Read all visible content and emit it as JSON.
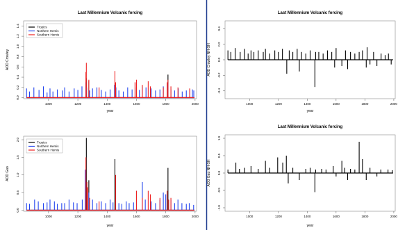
{
  "divider_color": "#1f3c8f",
  "chart_data": [
    {
      "type": "line",
      "title": "Last Millennium Volcanic forcing",
      "xlabel": "year",
      "ylabel": "AOD Crowley",
      "xlim": [
        830,
        2010
      ],
      "ylim": [
        -0.02,
        1.5
      ],
      "xticks": [
        1000,
        1200,
        1400,
        1600,
        1800,
        2000
      ],
      "yticks": [
        0.0,
        0.2,
        0.4,
        0.6,
        0.8,
        1.0,
        1.2,
        1.4
      ],
      "ytick_labels": [
        "0.0",
        "0.2",
        "0.4",
        "0.6",
        "0.8",
        "1.0",
        "1.2",
        "1.4"
      ],
      "legend": "top-left",
      "series": [
        {
          "name": "Tropics",
          "color": "#000000",
          "x": [
            1258,
            1275,
            1453,
            1600,
            1815
          ],
          "values": [
            0.38,
            0.33,
            0.28,
            0.2,
            0.45
          ]
        },
        {
          "name": "Northern Hemis",
          "color": "#2244ee",
          "x": [
            850,
            870,
            900,
            935,
            965,
            990,
            1010,
            1030,
            1060,
            1095,
            1110,
            1140,
            1175,
            1200,
            1228,
            1255,
            1260,
            1280,
            1300,
            1330,
            1360,
            1390,
            1420,
            1450,
            1460,
            1480,
            1510,
            1540,
            1570,
            1600,
            1620,
            1640,
            1665,
            1700,
            1730,
            1760,
            1783,
            1815,
            1835,
            1860,
            1885,
            1912,
            1940,
            1963,
            1982,
            1991
          ],
          "values": [
            0.18,
            0.12,
            0.2,
            0.15,
            0.22,
            0.1,
            0.18,
            0.12,
            0.16,
            0.14,
            0.2,
            0.12,
            0.18,
            0.15,
            0.22,
            0.3,
            0.2,
            0.14,
            0.18,
            0.2,
            0.15,
            0.12,
            0.16,
            0.25,
            0.2,
            0.14,
            0.12,
            0.2,
            0.16,
            0.3,
            0.15,
            0.22,
            0.2,
            0.18,
            0.14,
            0.16,
            0.22,
            0.28,
            0.16,
            0.14,
            0.18,
            0.12,
            0.14,
            0.16,
            0.16,
            0.14
          ]
        },
        {
          "name": "Southern Hemis",
          "color": "#ee2222",
          "x": [
            1255,
            1258,
            1275,
            1345,
            1453,
            1458,
            1590,
            1600,
            1640,
            1680,
            1695,
            1783,
            1809,
            1815,
            1835,
            1883,
            1963
          ],
          "values": [
            0.5,
            0.68,
            0.35,
            0.2,
            0.52,
            0.3,
            0.3,
            0.35,
            0.25,
            0.32,
            0.22,
            0.2,
            0.3,
            0.35,
            0.22,
            0.2,
            0.18
          ]
        }
      ]
    },
    {
      "type": "line",
      "title": "Last Millennium Volcanic forcing",
      "xlabel": "year",
      "ylabel": "AOD Crowley NH-SH",
      "xlim": [
        830,
        2010
      ],
      "ylim": [
        -0.5,
        0.5
      ],
      "xticks": [
        1000,
        1200,
        1400,
        1600,
        1800,
        2000
      ],
      "yticks": [
        -0.4,
        -0.2,
        0.0,
        0.2,
        0.4
      ],
      "ytick_labels": [
        "-0.4",
        "-0.2",
        "0.0",
        "0.2",
        "0.4"
      ],
      "series": [
        {
          "color": "#000000",
          "x": [
            850,
            870,
            900,
            935,
            965,
            990,
            1010,
            1030,
            1060,
            1095,
            1110,
            1140,
            1175,
            1200,
            1228,
            1258,
            1275,
            1300,
            1330,
            1345,
            1360,
            1390,
            1420,
            1453,
            1458,
            1480,
            1510,
            1540,
            1570,
            1590,
            1600,
            1640,
            1665,
            1680,
            1700,
            1730,
            1760,
            1783,
            1809,
            1815,
            1835,
            1860,
            1883,
            1912,
            1940,
            1963,
            1982
          ],
          "values": [
            0.12,
            0.1,
            0.15,
            0.1,
            0.14,
            0.08,
            0.12,
            0.1,
            0.12,
            0.1,
            0.14,
            0.08,
            0.12,
            0.1,
            0.14,
            -0.18,
            0.12,
            0.1,
            0.14,
            -0.15,
            0.1,
            0.08,
            0.12,
            -0.35,
            0.1,
            0.1,
            0.08,
            0.12,
            0.1,
            -0.1,
            0.15,
            -0.08,
            0.12,
            -0.12,
            0.1,
            0.08,
            0.1,
            0.12,
            -0.1,
            0.16,
            -0.06,
            0.1,
            -0.08,
            0.08,
            0.06,
            0.08,
            -0.06
          ]
        }
      ]
    },
    {
      "type": "line",
      "title": "",
      "xlabel": "year",
      "ylabel": "AOD Gao",
      "xlim": [
        830,
        2010
      ],
      "ylim": [
        -0.03,
        2.1
      ],
      "xticks": [
        1000,
        1200,
        1400,
        1600,
        1800,
        2000
      ],
      "yticks": [
        0.0,
        0.5,
        1.0,
        1.5,
        2.0
      ],
      "ytick_labels": [
        "0.0",
        "0.5",
        "1.0",
        "1.5",
        "2.0"
      ],
      "legend": "top-left",
      "series": [
        {
          "name": "Tropics",
          "color": "#000000",
          "x": [
            1258,
            1275,
            1453,
            1815
          ],
          "values": [
            2.05,
            0.85,
            1.45,
            1.2
          ]
        },
        {
          "name": "Northern Hemis",
          "color": "#2244ee",
          "x": [
            850,
            870,
            905,
            930,
            965,
            990,
            1010,
            1040,
            1060,
            1090,
            1110,
            1140,
            1170,
            1195,
            1230,
            1250,
            1275,
            1300,
            1330,
            1360,
            1390,
            1420,
            1440,
            1480,
            1500,
            1530,
            1550,
            1580,
            1600,
            1640,
            1660,
            1700,
            1730,
            1760,
            1783,
            1800,
            1835,
            1860,
            1883,
            1910,
            1940,
            1960,
            1990
          ],
          "values": [
            0.2,
            0.18,
            0.3,
            0.25,
            0.2,
            0.22,
            0.3,
            0.25,
            0.18,
            0.2,
            0.2,
            0.3,
            0.22,
            0.2,
            0.3,
            1.15,
            0.5,
            0.3,
            0.2,
            0.25,
            0.2,
            0.3,
            0.22,
            0.2,
            0.18,
            0.25,
            0.2,
            0.22,
            0.55,
            0.8,
            0.3,
            0.25,
            0.2,
            0.3,
            0.5,
            0.45,
            0.3,
            0.2,
            0.3,
            0.2,
            0.18,
            0.2,
            0.15
          ]
        },
        {
          "name": "Southern Hemis",
          "color": "#ee2222",
          "x": [
            1255,
            1262,
            1268,
            1280,
            1345,
            1458,
            1600,
            1640,
            1680,
            1695,
            1760,
            1809,
            1820,
            1835
          ],
          "values": [
            1.5,
            0.8,
            0.65,
            0.35,
            0.25,
            1.0,
            0.55,
            0.35,
            0.55,
            0.45,
            0.35,
            0.55,
            0.3,
            0.35
          ]
        }
      ]
    },
    {
      "type": "line",
      "title": "Last Millennium Volcanic forcing",
      "xlabel": "year",
      "ylabel": "AOD Gao NH-SH",
      "xlim": [
        830,
        2010
      ],
      "ylim": [
        -1.1,
        1.1
      ],
      "xticks": [
        1000,
        1200,
        1400,
        1600,
        1800,
        2000
      ],
      "yticks": [
        -1.0,
        -0.5,
        0.0,
        0.5,
        1.0
      ],
      "ytick_labels": [
        "-1.0",
        "-0.5",
        "0.0",
        "0.5",
        "1.0"
      ],
      "series": [
        {
          "color": "#000000",
          "x": [
            850,
            905,
            930,
            965,
            1010,
            1060,
            1110,
            1140,
            1195,
            1230,
            1255,
            1268,
            1300,
            1345,
            1390,
            1420,
            1453,
            1458,
            1500,
            1530,
            1580,
            1600,
            1640,
            1660,
            1680,
            1700,
            1730,
            1760,
            1783,
            1809,
            1835,
            1883,
            1910,
            1960,
            1990
          ],
          "values": [
            0.1,
            0.3,
            0.12,
            0.15,
            0.2,
            0.12,
            0.35,
            0.15,
            0.45,
            0.3,
            0.5,
            -0.3,
            0.15,
            -0.2,
            0.12,
            0.15,
            -0.55,
            0.1,
            0.12,
            0.1,
            0.2,
            -0.1,
            0.35,
            0.15,
            -0.2,
            0.12,
            0.1,
            0.9,
            0.4,
            -0.2,
            0.15,
            -0.1,
            0.1,
            0.1,
            0.08
          ]
        }
      ]
    }
  ]
}
